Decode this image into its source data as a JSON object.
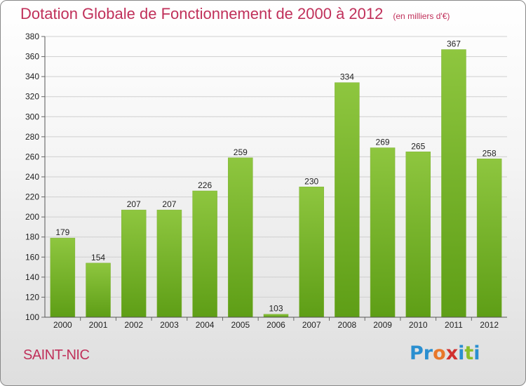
{
  "title": {
    "main": "Dotation Globale de Fonctionnement de 2000 à 2012",
    "sub": "(en milliers d'€)"
  },
  "commune": "SAINT-NIC",
  "logo": {
    "text": "Proxiti",
    "letter_colors": [
      "#2a8fd0",
      "#2a8fd0",
      "#e8772a",
      "#d1302f",
      "#2a8fd0",
      "#8bbf2a",
      "#2a8fd0"
    ]
  },
  "colors": {
    "title": "#c0305a",
    "bar_top": "#8ec63f",
    "bar_bottom": "#5e9e16",
    "grid": "#cfcfcf",
    "axis_text": "#222222"
  },
  "chart_data": {
    "type": "bar",
    "categories": [
      "2000",
      "2001",
      "2002",
      "2003",
      "2004",
      "2005",
      "2006",
      "2007",
      "2008",
      "2009",
      "2010",
      "2011",
      "2012"
    ],
    "values": [
      179,
      154,
      207,
      207,
      226,
      259,
      103,
      230,
      334,
      269,
      265,
      367,
      258
    ],
    "value_labels": [
      "179",
      "154",
      "207",
      "207",
      "226",
      "259",
      "103",
      "230",
      "334",
      "269",
      "265",
      "367",
      "258"
    ],
    "ylim": [
      100,
      380
    ],
    "yticks": [
      100,
      120,
      140,
      160,
      180,
      200,
      220,
      240,
      260,
      280,
      300,
      320,
      340,
      360,
      380
    ],
    "grid": true,
    "data_labels": true
  }
}
